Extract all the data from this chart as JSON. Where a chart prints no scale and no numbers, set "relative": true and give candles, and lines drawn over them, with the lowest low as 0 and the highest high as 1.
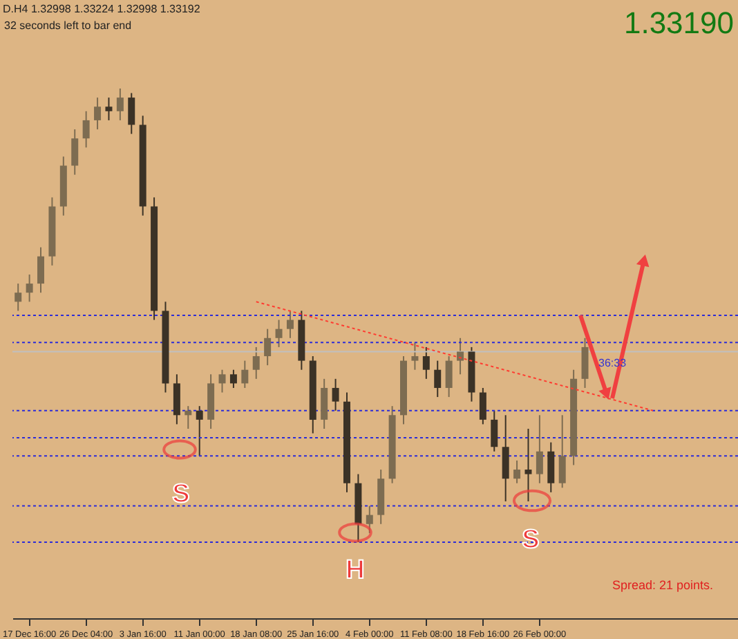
{
  "chart_data": {
    "type": "candlestick",
    "title": "D.H4  1.32998 1.33224 1.32998 1.33192",
    "subtitle": "32 seconds left to bar end",
    "relative": true,
    "colors": [
      "#7d6c51",
      "#7d6c51",
      "#7d6c51",
      "#7d6c51",
      "#7d6c51",
      "#7d6c51",
      "#7d6c51",
      "#7d6c51",
      "#3b3226",
      "#7d6c51",
      "#3b3226",
      "#3b3226",
      "#3b3226",
      "#3b3226",
      "#3b3226",
      "#7d6c51",
      "#3b3226",
      "#7d6c51",
      "#7d6c51",
      "#3b3226",
      "#7d6c51",
      "#7d6c51",
      "#7d6c51",
      "#7d6c51",
      "#7d6c51",
      "#3b3226",
      "#3b3226",
      "#7d6c51",
      "#3b3226",
      "#3b3226",
      "#3b3226",
      "#7d6c51",
      "#7d6c51",
      "#7d6c51",
      "#7d6c51",
      "#7d6c51",
      "#3b3226",
      "#3b3226",
      "#7d6c51",
      "#7d6c51",
      "#3b3226",
      "#3b3226",
      "#3b3226",
      "#3b3226",
      "#7d6c51",
      "#3b3226",
      "#7d6c51",
      "#3b3226",
      "#7d6c51",
      "#7d6c51",
      "#7d6c51",
      null,
      null,
      null,
      null,
      null,
      null,
      null,
      null,
      null,
      null,
      null,
      null,
      null
    ],
    "categories": [
      null,
      "17 Dec 16:00",
      null,
      null,
      null,
      null,
      "26 Dec 04:00",
      null,
      null,
      null,
      null,
      "3 Jan 16:00",
      null,
      null,
      null,
      null,
      "11 Jan 00:00",
      null,
      null,
      null,
      null,
      "18 Jan 08:00",
      null,
      null,
      null,
      null,
      "25 Jan 16:00",
      null,
      null,
      null,
      null,
      "4 Feb 00:00",
      null,
      null,
      null,
      null,
      "11 Feb 08:00",
      null,
      null,
      null,
      null,
      "18 Feb 16:00",
      null,
      null,
      null,
      null,
      "26 Feb 00:00",
      null,
      null,
      null,
      null,
      null,
      null,
      null,
      null,
      null,
      null,
      null,
      null,
      null,
      null,
      null,
      null,
      null
    ],
    "ohlc": [
      [
        0.53,
        0.57,
        0.51,
        0.55
      ],
      [
        0.55,
        0.59,
        0.53,
        0.57
      ],
      [
        0.57,
        0.65,
        0.55,
        0.63
      ],
      [
        0.63,
        0.76,
        0.61,
        0.74
      ],
      [
        0.74,
        0.85,
        0.72,
        0.83
      ],
      [
        0.83,
        0.91,
        0.81,
        0.89
      ],
      [
        0.89,
        0.95,
        0.87,
        0.93
      ],
      [
        0.93,
        0.98,
        0.91,
        0.96
      ],
      [
        0.96,
        0.98,
        0.93,
        0.95
      ],
      [
        0.95,
        1,
        0.93,
        0.98
      ],
      [
        0.98,
        0.99,
        0.9,
        0.92
      ],
      [
        0.92,
        0.94,
        0.72,
        0.74
      ],
      [
        0.74,
        0.76,
        0.49,
        0.51
      ],
      [
        0.51,
        0.53,
        0.33,
        0.35
      ],
      [
        0.35,
        0.37,
        0.26,
        0.28
      ],
      [
        0.28,
        0.3,
        0.25,
        0.29
      ],
      [
        0.29,
        0.3,
        0.19,
        0.27
      ],
      [
        0.27,
        0.37,
        0.25,
        0.35
      ],
      [
        0.35,
        0.38,
        0.33,
        0.37
      ],
      [
        0.37,
        0.38,
        0.34,
        0.35
      ],
      [
        0.35,
        0.4,
        0.34,
        0.38
      ],
      [
        0.38,
        0.43,
        0.36,
        0.41
      ],
      [
        0.41,
        0.47,
        0.39,
        0.45
      ],
      [
        0.45,
        0.49,
        0.43,
        0.47
      ],
      [
        0.47,
        0.51,
        0.45,
        0.49
      ],
      [
        0.49,
        0.51,
        0.38,
        0.4
      ],
      [
        0.4,
        0.41,
        0.24,
        0.27
      ],
      [
        0.27,
        0.36,
        0.25,
        0.34
      ],
      [
        0.34,
        0.36,
        0.29,
        0.31
      ],
      [
        0.31,
        0.33,
        0.11,
        0.13
      ],
      [
        0.13,
        0.15,
        0,
        0.04
      ],
      [
        0.04,
        0.08,
        0.02,
        0.06
      ],
      [
        0.06,
        0.16,
        0.04,
        0.14
      ],
      [
        0.14,
        0.3,
        0.13,
        0.28
      ],
      [
        0.28,
        0.41,
        0.26,
        0.4
      ],
      [
        0.4,
        0.44,
        0.38,
        0.41
      ],
      [
        0.41,
        0.43,
        0.36,
        0.38
      ],
      [
        0.38,
        0.4,
        0.32,
        0.34
      ],
      [
        0.34,
        0.41,
        0.32,
        0.4
      ],
      [
        0.4,
        0.45,
        0.37,
        0.42
      ],
      [
        0.42,
        0.43,
        0.31,
        0.33
      ],
      [
        0.33,
        0.34,
        0.26,
        0.27
      ],
      [
        0.27,
        0.29,
        0.2,
        0.21
      ],
      [
        0.21,
        0.28,
        0.09,
        0.14
      ],
      [
        0.14,
        0.18,
        0.13,
        0.16
      ],
      [
        0.16,
        0.25,
        0.09,
        0.15
      ],
      [
        0.15,
        0.28,
        0.13,
        0.2
      ],
      [
        0.2,
        0.22,
        0.11,
        0.13
      ],
      [
        0.13,
        0.28,
        0.12,
        0.19
      ],
      [
        0.19,
        0.38,
        0.17,
        0.36
      ],
      [
        0.36,
        0.45,
        0.34,
        0.43
      ],
      null,
      null,
      null,
      null,
      null,
      null,
      null,
      null,
      null,
      null,
      null,
      null,
      null
    ],
    "series": [
      {
        "type": "line",
        "color": "#ff3b30",
        "line_style": "dotted",
        "values": [
          null,
          null,
          null,
          null,
          null,
          null,
          null,
          null,
          null,
          null,
          null,
          null,
          null,
          null,
          null,
          null,
          null,
          null,
          null,
          null,
          null,
          0.53,
          null,
          null,
          null,
          null,
          null,
          null,
          null,
          null,
          null,
          null,
          null,
          null,
          null,
          null,
          null,
          null,
          null,
          null,
          null,
          null,
          null,
          null,
          null,
          null,
          null,
          null,
          null,
          null,
          null,
          null,
          null,
          null,
          null,
          null,
          0.29,
          null,
          null,
          null,
          null,
          null,
          null,
          null
        ]
      }
    ],
    "ref_lines": [
      {
        "axis": "y",
        "value": 0.5,
        "color": "#2c2cd8",
        "line_style": "dotted"
      },
      {
        "axis": "y",
        "value": 0.44,
        "color": "#2c2cd8",
        "line_style": "dotted"
      },
      {
        "axis": "y",
        "value": 0.42,
        "color": "#c0c0c0",
        "line_style": "solid"
      },
      {
        "axis": "y",
        "value": 0.29,
        "color": "#2c2cd8",
        "line_style": "dotted"
      },
      {
        "axis": "y",
        "value": 0.23,
        "color": "#2c2cd8",
        "line_style": "dotted"
      },
      {
        "axis": "y",
        "value": 0.19,
        "color": "#2c2cd8",
        "line_style": "dotted"
      },
      {
        "axis": "y",
        "value": 0.08,
        "color": "#2c2cd8",
        "line_style": "dotted"
      },
      {
        "axis": "y",
        "value": 0.0,
        "color": "#2c2cd8",
        "line_style": "dotted"
      }
    ],
    "annotations": [
      "1.33190",
      "36:33",
      "S",
      "H",
      "S",
      "Spread: 21 points."
    ]
  }
}
